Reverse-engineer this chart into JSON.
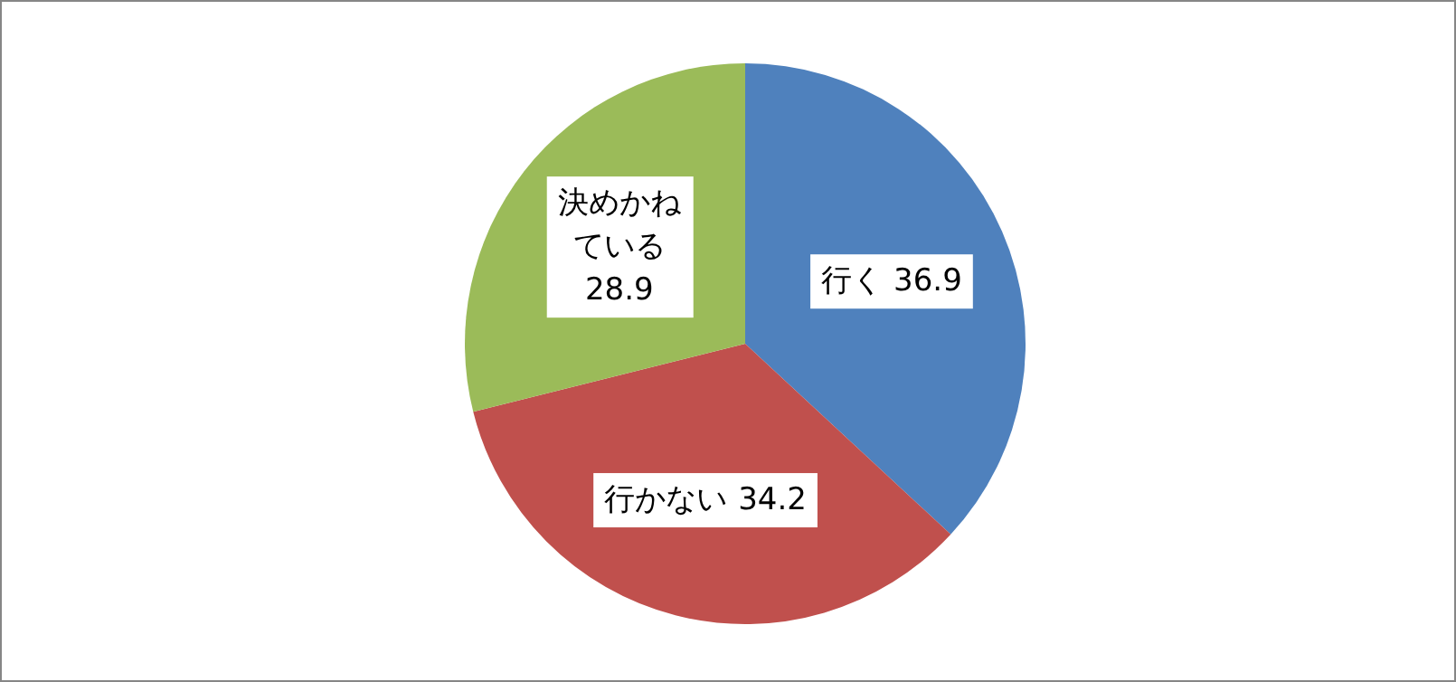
{
  "chart_data": {
    "type": "pie",
    "categories": [
      "行く",
      "行かない",
      "決めかねている"
    ],
    "values": [
      36.9,
      34.2,
      28.9
    ],
    "colors": [
      "#4f81bd",
      "#c0504d",
      "#9bbb59"
    ],
    "data_labels": true
  }
}
